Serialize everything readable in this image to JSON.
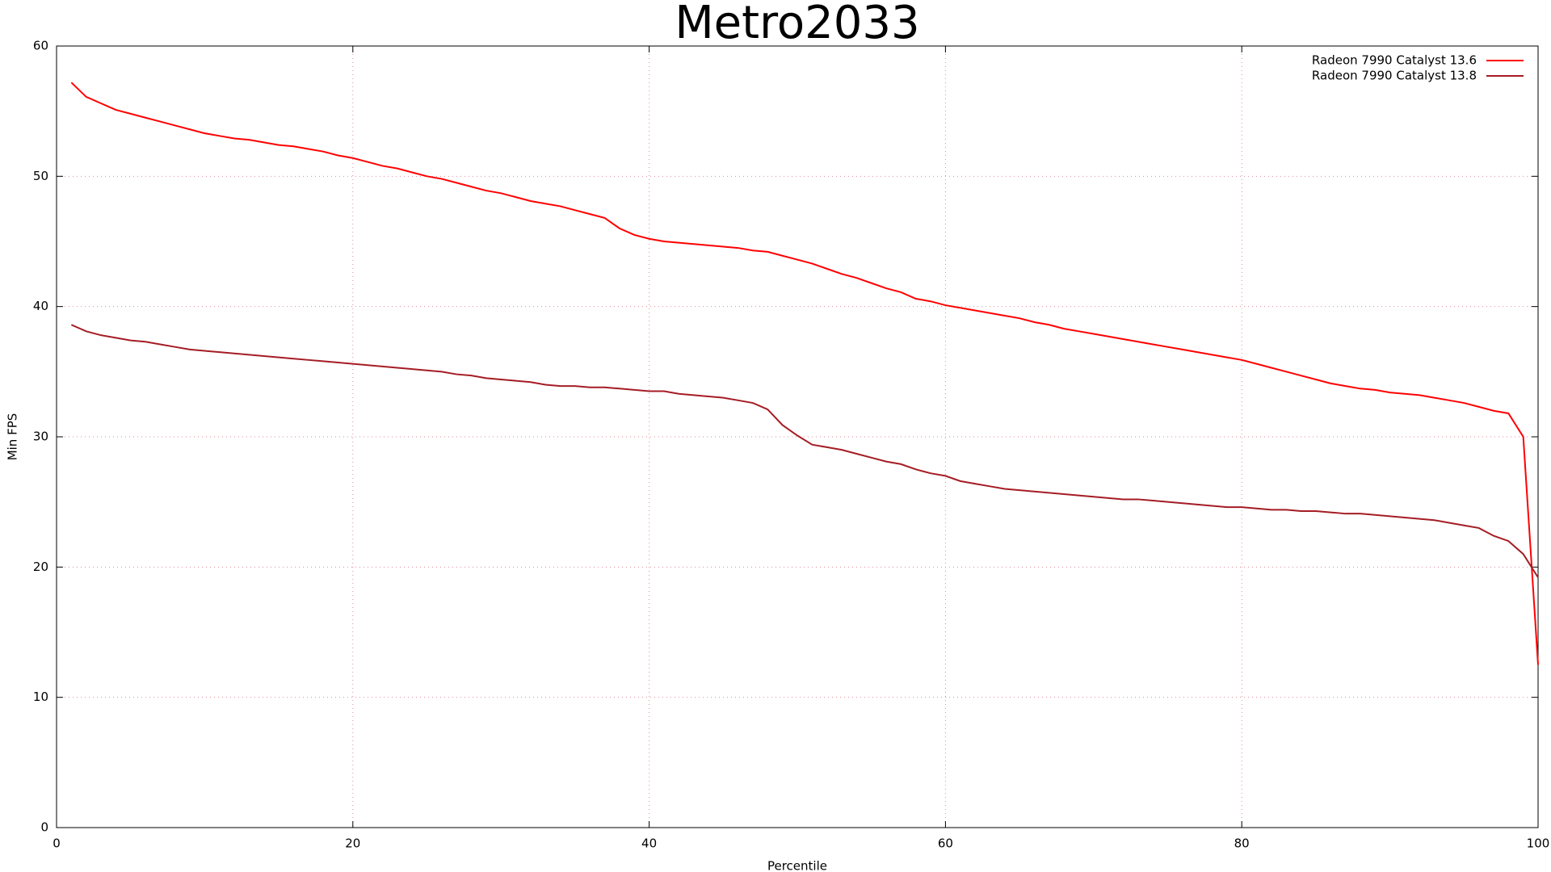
{
  "chart_data": {
    "type": "line",
    "title": "Metro2033",
    "x_label": "Percentile",
    "y_label": "Min FPS",
    "x": [
      1,
      2,
      3,
      4,
      5,
      6,
      7,
      8,
      9,
      10,
      11,
      12,
      13,
      14,
      15,
      16,
      17,
      18,
      19,
      20,
      21,
      22,
      23,
      24,
      25,
      26,
      27,
      28,
      29,
      30,
      31,
      32,
      33,
      34,
      35,
      36,
      37,
      38,
      39,
      40,
      41,
      42,
      43,
      44,
      45,
      46,
      47,
      48,
      49,
      50,
      51,
      52,
      53,
      54,
      55,
      56,
      57,
      58,
      59,
      60,
      61,
      62,
      63,
      64,
      65,
      66,
      67,
      68,
      69,
      70,
      71,
      72,
      73,
      74,
      75,
      76,
      77,
      78,
      79,
      80,
      81,
      82,
      83,
      84,
      85,
      86,
      87,
      88,
      89,
      90,
      91,
      92,
      93,
      94,
      95,
      96,
      97,
      98,
      99,
      100
    ],
    "series": [
      {
        "name": "Radeon 7990 Catalyst 13.6",
        "color": "#ff0000",
        "values": [
          57.2,
          56.1,
          55.6,
          55.1,
          54.8,
          54.5,
          54.2,
          53.9,
          53.6,
          53.3,
          53.1,
          52.9,
          52.8,
          52.6,
          52.4,
          52.3,
          52.1,
          51.9,
          51.6,
          51.4,
          51.1,
          50.8,
          50.6,
          50.3,
          50.0,
          49.8,
          49.5,
          49.2,
          48.9,
          48.7,
          48.4,
          48.1,
          47.9,
          47.7,
          47.4,
          47.1,
          46.8,
          46.0,
          45.5,
          45.2,
          45.0,
          44.9,
          44.8,
          44.7,
          44.6,
          44.5,
          44.3,
          44.2,
          43.9,
          43.6,
          43.3,
          42.9,
          42.5,
          42.2,
          41.8,
          41.4,
          41.1,
          40.6,
          40.4,
          40.1,
          39.9,
          39.7,
          39.5,
          39.3,
          39.1,
          38.8,
          38.6,
          38.3,
          38.1,
          37.9,
          37.7,
          37.5,
          37.3,
          37.1,
          36.9,
          36.7,
          36.5,
          36.3,
          36.1,
          35.9,
          35.6,
          35.3,
          35.0,
          34.7,
          34.4,
          34.1,
          33.9,
          33.7,
          33.6,
          33.4,
          33.3,
          33.2,
          33.0,
          32.8,
          32.6,
          32.3,
          32.0,
          31.8,
          30.0,
          12.5
        ]
      },
      {
        "name": "Radeon 7990 Catalyst 13.8",
        "color": "#a51c24",
        "values": [
          38.6,
          38.1,
          37.8,
          37.6,
          37.4,
          37.3,
          37.1,
          36.9,
          36.7,
          36.6,
          36.5,
          36.4,
          36.3,
          36.2,
          36.1,
          36.0,
          35.9,
          35.8,
          35.7,
          35.6,
          35.5,
          35.4,
          35.3,
          35.2,
          35.1,
          35.0,
          34.8,
          34.7,
          34.5,
          34.4,
          34.3,
          34.2,
          34.0,
          33.9,
          33.9,
          33.8,
          33.8,
          33.7,
          33.6,
          33.5,
          33.5,
          33.3,
          33.2,
          33.1,
          33.0,
          32.8,
          32.6,
          32.1,
          30.9,
          30.1,
          29.4,
          29.2,
          29.0,
          28.7,
          28.4,
          28.1,
          27.9,
          27.5,
          27.2,
          27.0,
          26.6,
          26.4,
          26.2,
          26.0,
          25.9,
          25.8,
          25.7,
          25.6,
          25.5,
          25.4,
          25.3,
          25.2,
          25.2,
          25.1,
          25.0,
          24.9,
          24.8,
          24.7,
          24.6,
          24.6,
          24.5,
          24.4,
          24.4,
          24.3,
          24.3,
          24.2,
          24.1,
          24.1,
          24.0,
          23.9,
          23.8,
          23.7,
          23.6,
          23.4,
          23.2,
          23.0,
          22.4,
          22.0,
          21.0,
          19.2
        ]
      }
    ],
    "xlim": [
      0,
      100
    ],
    "xticks": [
      0,
      20,
      40,
      60,
      80,
      100
    ],
    "ylim": [
      0,
      60
    ],
    "yticks": [
      0,
      10,
      20,
      30,
      40,
      50,
      60
    ],
    "grid": true,
    "legend": "top-right"
  }
}
